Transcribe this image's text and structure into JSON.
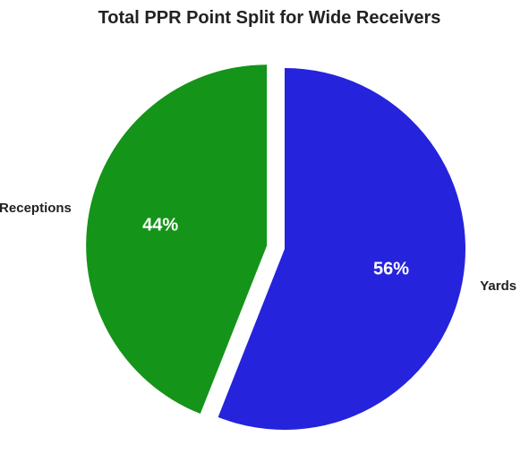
{
  "chart_data": {
    "type": "pie",
    "title": "Total PPR Point Split for Wide Receivers",
    "categories": [
      "Yards",
      "Receptions"
    ],
    "values": [
      56,
      44
    ],
    "labels": [
      "56%",
      "44%"
    ],
    "colors": [
      "#2623dc",
      "#149419"
    ],
    "start_angle_deg": 90,
    "direction": "clockwise",
    "explode": [
      0,
      0.1
    ],
    "legend": "none"
  }
}
